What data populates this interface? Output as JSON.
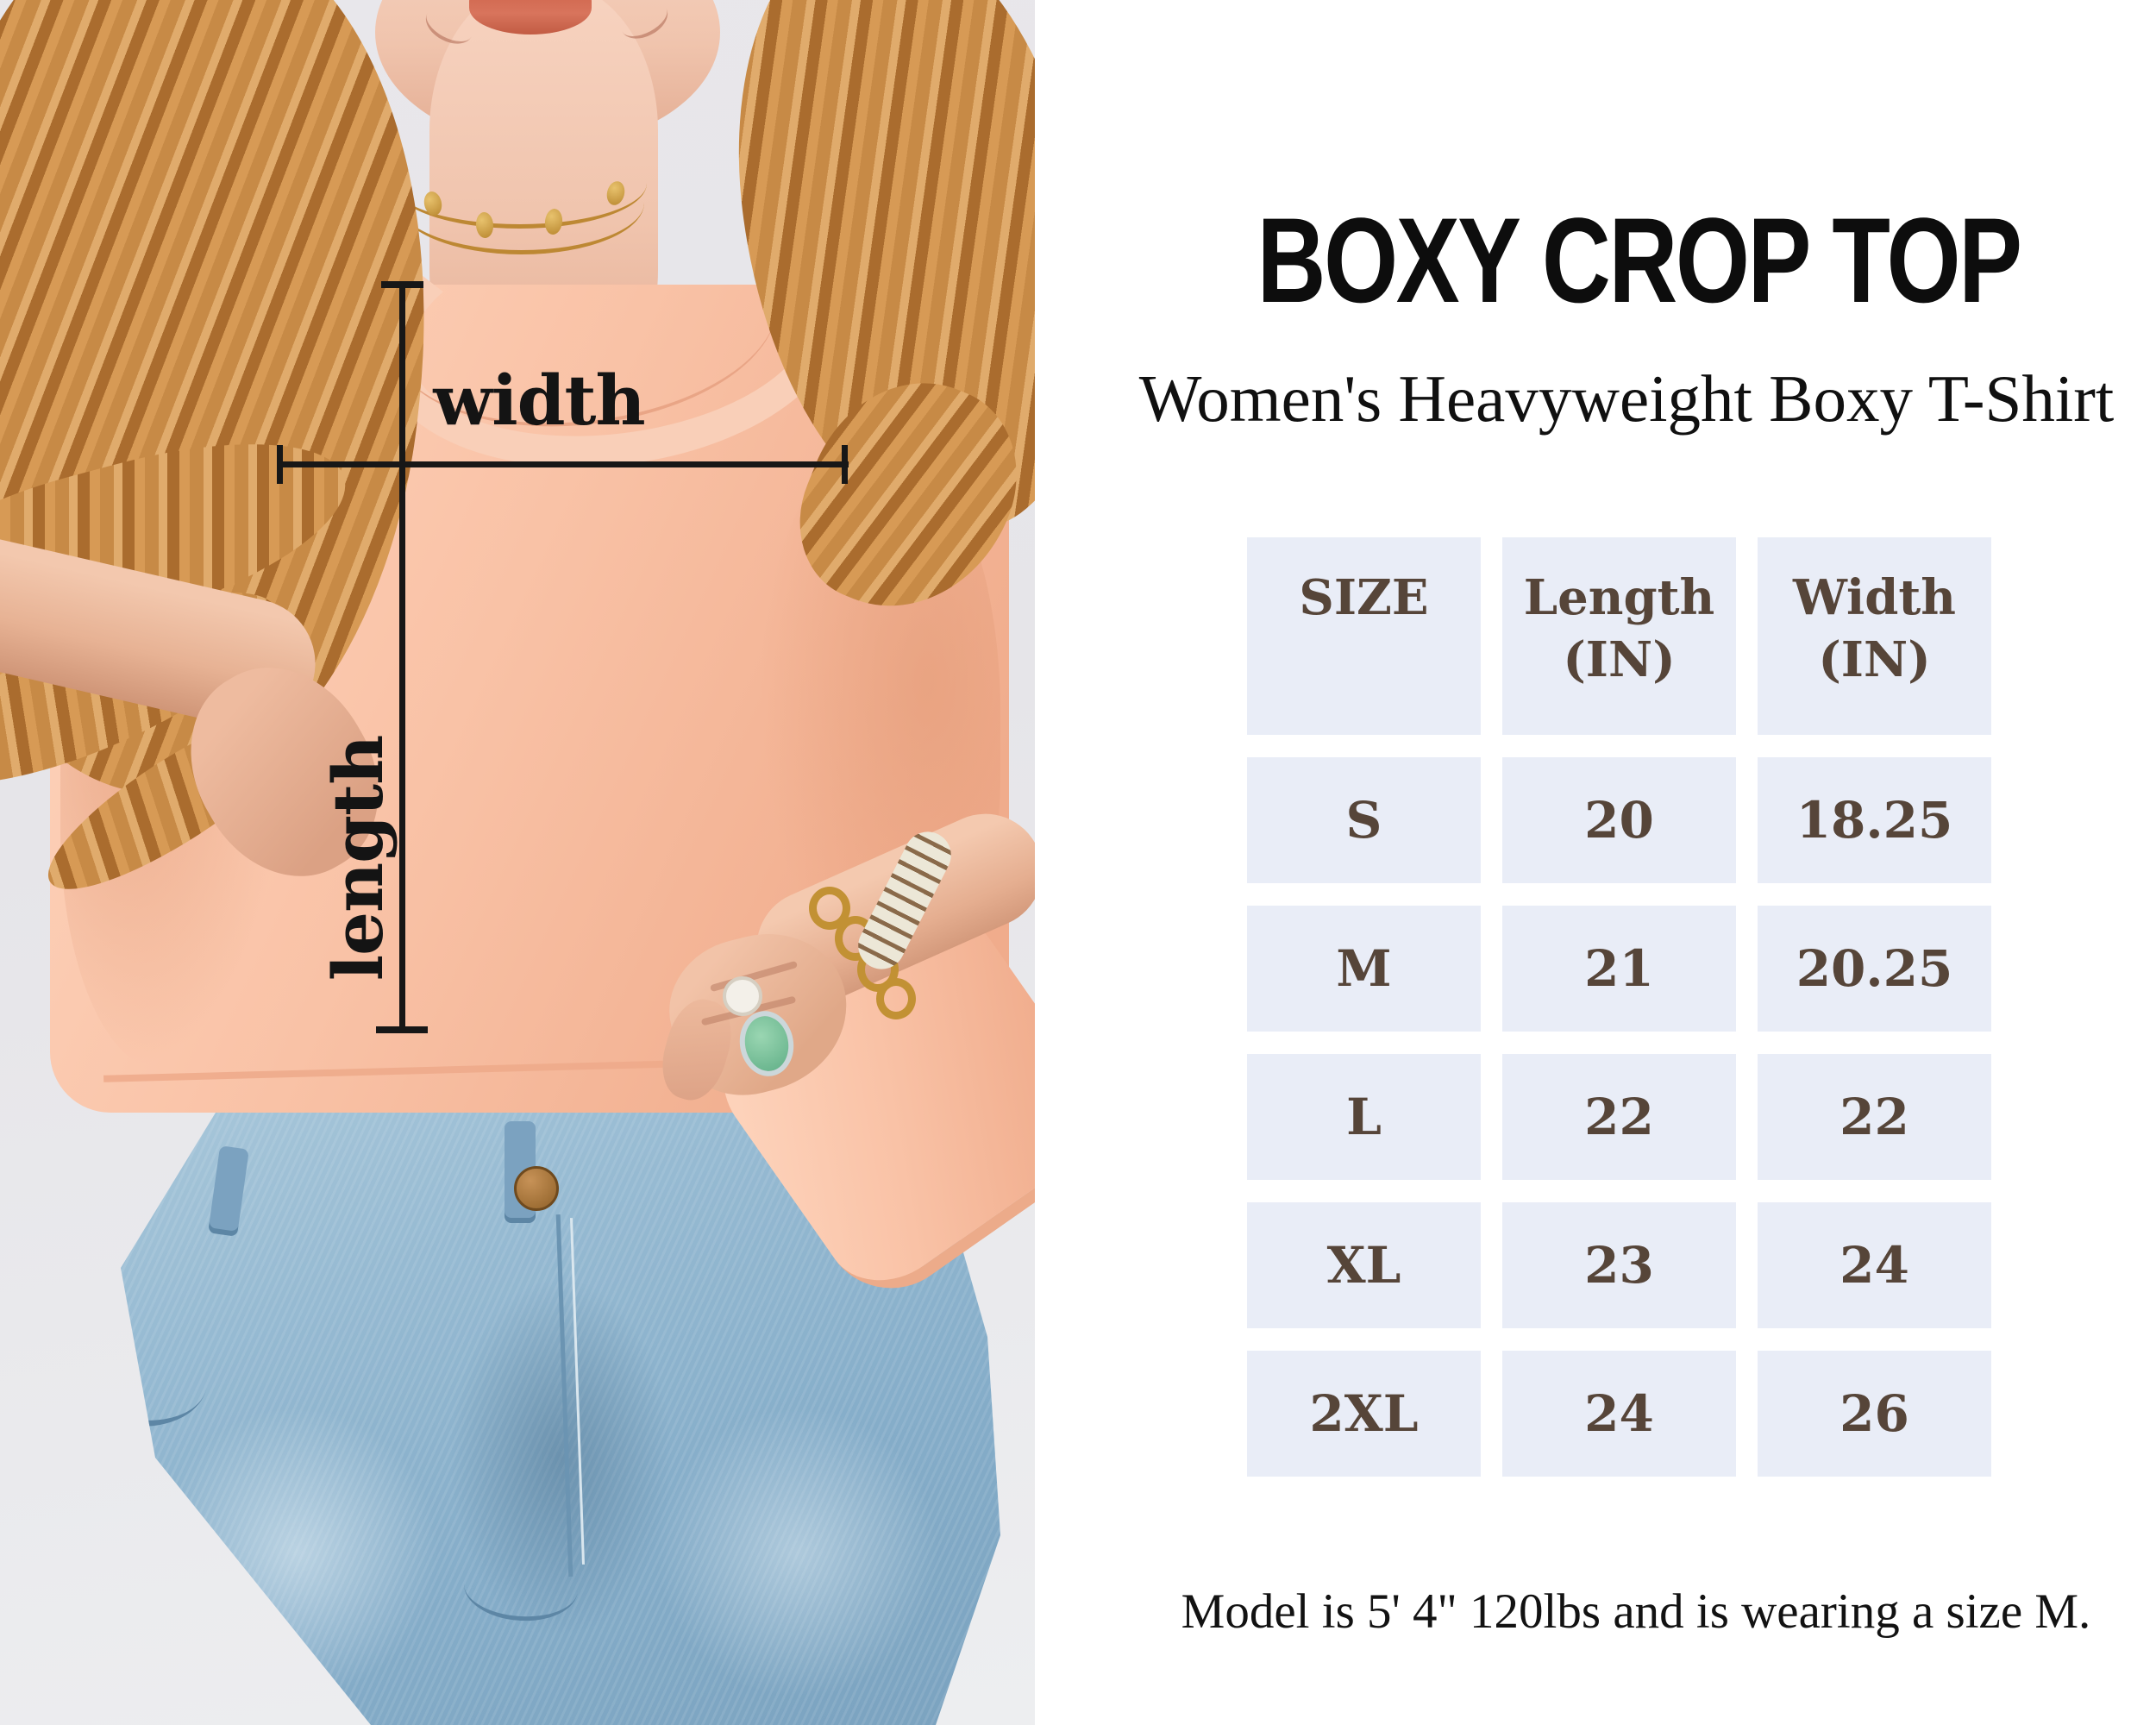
{
  "header": {
    "title": "BOXY CROP TOP",
    "subtitle": "Women's Heavyweight Boxy T-Shirt"
  },
  "photo": {
    "description": "Model with long strawberry-blonde hair wearing a peach boxy crop t-shirt and light-wash jeans, with measurement guides drawn over the shirt",
    "width_label": "width",
    "length_label": "length"
  },
  "size_table": {
    "columns": [
      {
        "key": "size",
        "label": "SIZE",
        "unit": ""
      },
      {
        "key": "length",
        "label": "Length",
        "unit": "(IN)"
      },
      {
        "key": "width",
        "label": "Width",
        "unit": "(IN)"
      }
    ],
    "rows": [
      {
        "size": "S",
        "length": "20",
        "width": "18.25"
      },
      {
        "size": "M",
        "length": "21",
        "width": "20.25"
      },
      {
        "size": "L",
        "length": "22",
        "width": "22"
      },
      {
        "size": "XL",
        "length": "23",
        "width": "24"
      },
      {
        "size": "2XL",
        "length": "24",
        "width": "26"
      }
    ]
  },
  "note": "Model is 5' 4\" 120lbs and is wearing a size M.",
  "colors": {
    "panel_background": "#ffffff",
    "photo_background": "#e8e7eb",
    "table_cell_background": "#e9edf7",
    "table_text": "#564539",
    "shirt_peach": "#f9c2a6",
    "jeans_blue": "#8fb3cd",
    "annotation_black": "#171717"
  }
}
